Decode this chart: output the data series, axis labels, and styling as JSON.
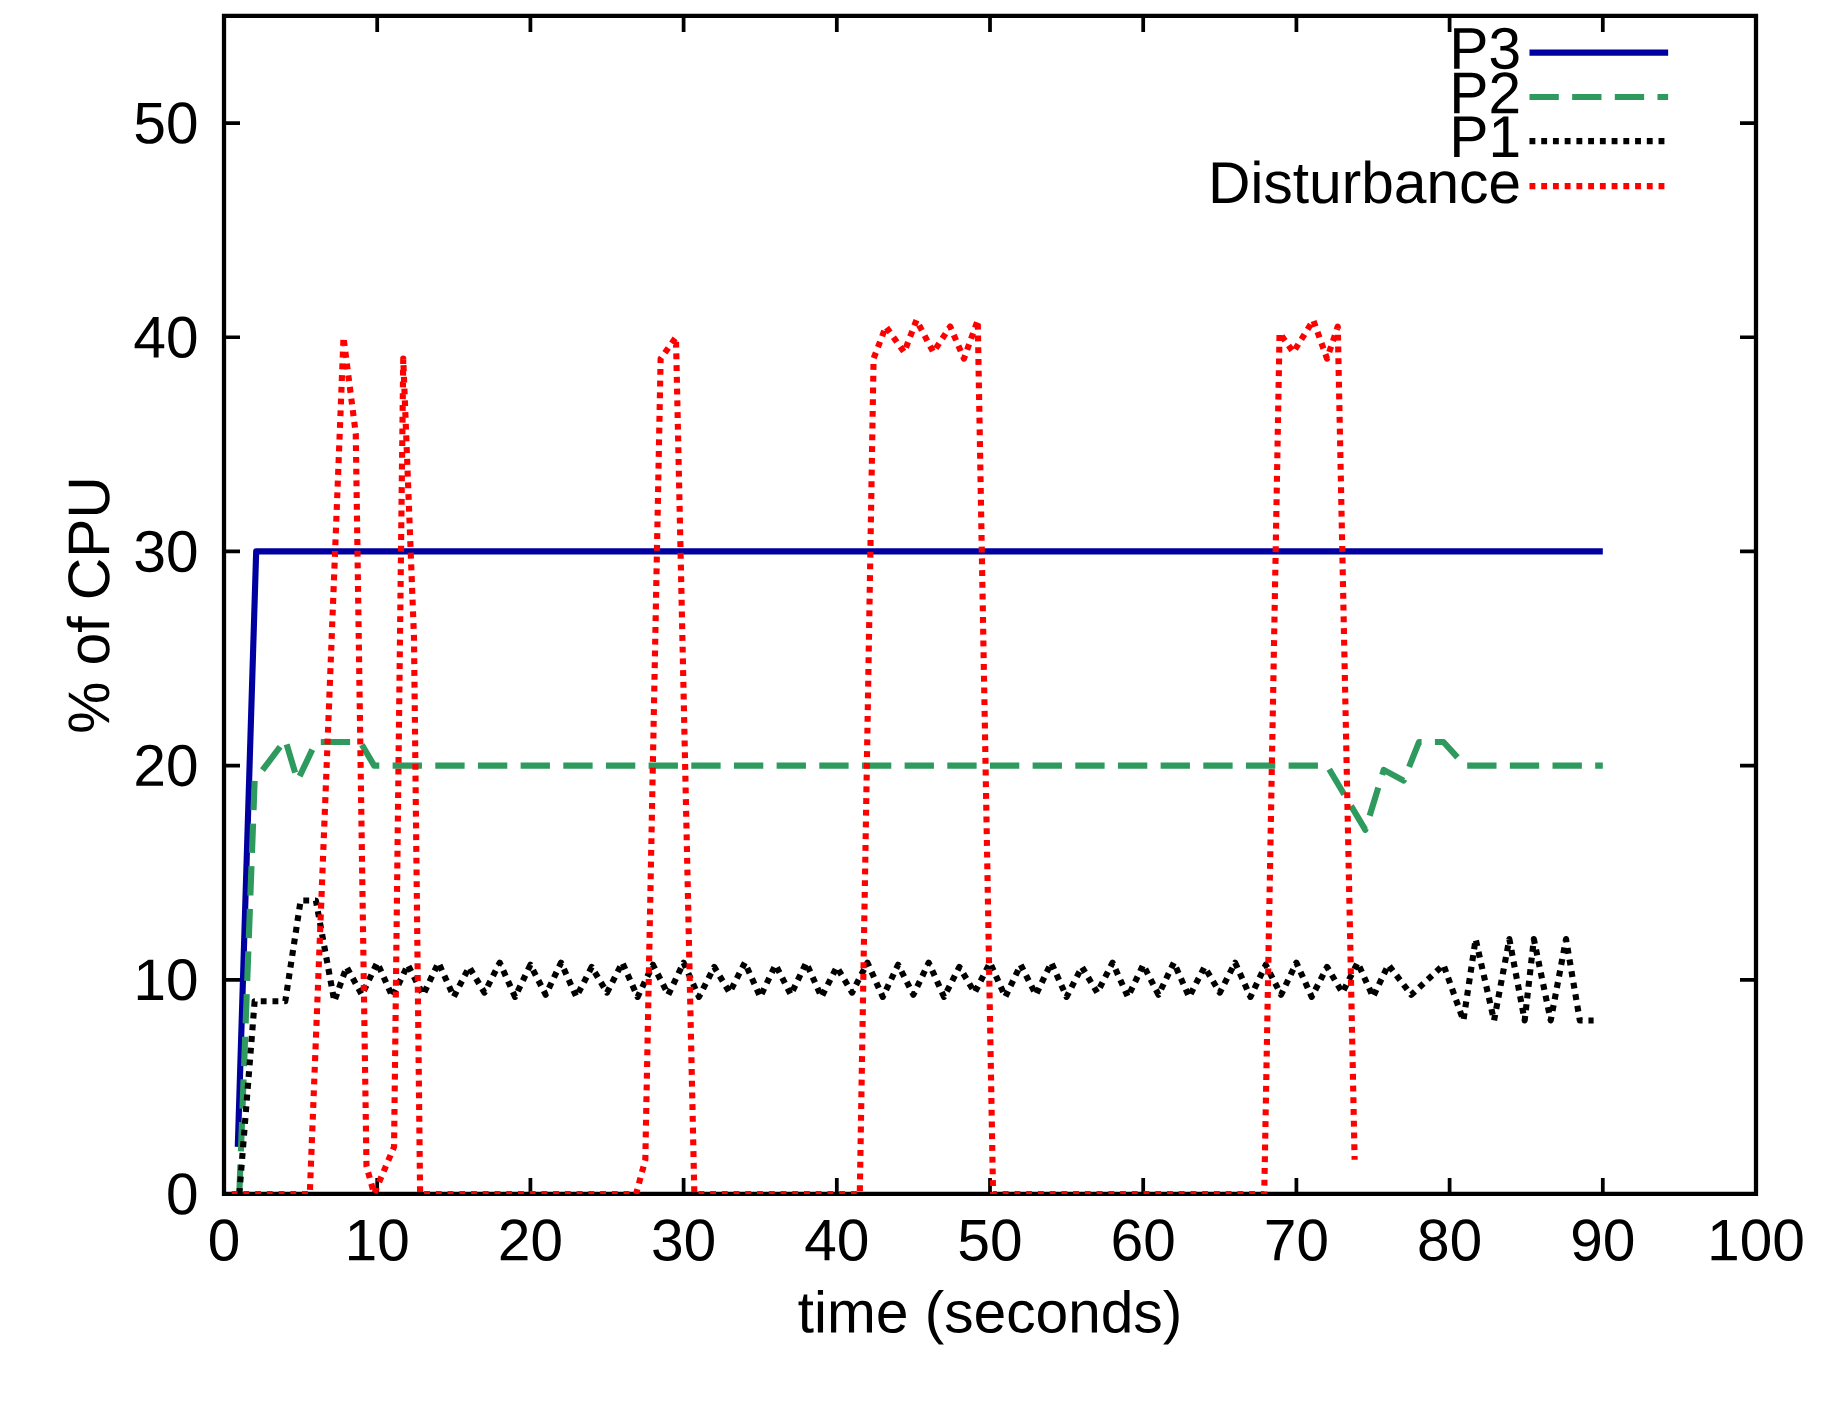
{
  "chart_data": {
    "type": "line",
    "xlabel": "time (seconds)",
    "ylabel": "% of CPU",
    "xlim": [
      0,
      100
    ],
    "ylim": [
      0,
      55
    ],
    "xticks": [
      0,
      10,
      20,
      30,
      40,
      50,
      60,
      70,
      80,
      90,
      100
    ],
    "yticks": [
      0,
      10,
      20,
      30,
      40,
      50
    ],
    "legend": "top right",
    "marker": "none",
    "series": [
      {
        "name": "P3",
        "color": "#0000a0",
        "line_style": "solid",
        "x": [
          0.9,
          2.1,
          90
        ],
        "values": [
          2.2,
          30,
          30
        ]
      },
      {
        "name": "P2",
        "color": "#2e9a5e",
        "line_style": "dashed",
        "x": [
          1,
          2,
          4,
          4.8,
          6,
          8.9,
          9.8,
          72,
          74.5,
          75.7,
          77,
          78,
          79.6,
          81,
          90
        ],
        "values": [
          0,
          19.3,
          21.2,
          19.3,
          21.1,
          21.1,
          20,
          20,
          17,
          19.8,
          19.3,
          21.1,
          21.1,
          20,
          20
        ]
      },
      {
        "name": "P1",
        "color": "#000000",
        "line_style": "dotted",
        "x": [
          1,
          2,
          4,
          5,
          6,
          7.2,
          8,
          9,
          10,
          11,
          12,
          13,
          14,
          15,
          16,
          17,
          18,
          19,
          20,
          21,
          22,
          23,
          24,
          25,
          26,
          27,
          28,
          29,
          30,
          31,
          32,
          33,
          34,
          35,
          36,
          37,
          38,
          39,
          40,
          41,
          42,
          43,
          44,
          45,
          46,
          47,
          48,
          49,
          50,
          51,
          52,
          53,
          54,
          55,
          56,
          57,
          58,
          59,
          60,
          61,
          62,
          63,
          64,
          65,
          66,
          67,
          68,
          69,
          70,
          71,
          72,
          73,
          74,
          75,
          76,
          77.5,
          79.6,
          80.9,
          81.7,
          82.9,
          83.9,
          84.9,
          85.5,
          86.6,
          87.6,
          88.5,
          89.4
        ],
        "values": [
          0,
          9,
          9,
          13.7,
          13.7,
          9,
          10.6,
          9.3,
          10.8,
          9.2,
          10.7,
          9.3,
          10.8,
          9.2,
          10.6,
          9.4,
          10.8,
          9.2,
          10.7,
          9.3,
          10.8,
          9.2,
          10.6,
          9.4,
          10.8,
          9.2,
          10.7,
          9.3,
          10.8,
          9.2,
          10.6,
          9.4,
          10.8,
          9.2,
          10.7,
          9.3,
          10.8,
          9.2,
          10.6,
          9.4,
          10.8,
          9.2,
          10.7,
          9.3,
          10.8,
          9.2,
          10.6,
          9.4,
          10.8,
          9.2,
          10.7,
          9.3,
          10.8,
          9.2,
          10.6,
          9.4,
          10.8,
          9.2,
          10.7,
          9.3,
          10.8,
          9.2,
          10.6,
          9.4,
          10.8,
          9.2,
          10.7,
          9.3,
          10.8,
          9.2,
          10.6,
          9.4,
          10.8,
          9.2,
          10.7,
          9.3,
          10.7,
          8.1,
          11.9,
          8.1,
          11.9,
          8.1,
          11.9,
          8.1,
          11.9,
          8.1,
          8.1
        ]
      },
      {
        "name": "Disturbance",
        "color": "#ff0000",
        "line_style": "dotted",
        "x": [
          0.5,
          5.6,
          7.8,
          8.6,
          9.3,
          9.8,
          11.1,
          11.7,
          12.4,
          12.8,
          26.9,
          27.5,
          28.5,
          29.5,
          30.7,
          41.5,
          42.4,
          43.2,
          44.4,
          45.2,
          46.3,
          47.4,
          48.3,
          49.2,
          50.2,
          67.9,
          68.9,
          69.8,
          71.1,
          72,
          72.7,
          73.8
        ],
        "values": [
          0,
          0,
          40,
          35.5,
          1.3,
          0,
          2.2,
          39,
          26,
          0,
          0,
          1.6,
          39,
          40,
          0,
          0,
          39,
          40.5,
          39.3,
          40.8,
          39.3,
          40.5,
          39,
          40.8,
          0,
          0,
          40.2,
          39.3,
          40.8,
          39,
          40.5,
          1.6
        ]
      }
    ]
  }
}
